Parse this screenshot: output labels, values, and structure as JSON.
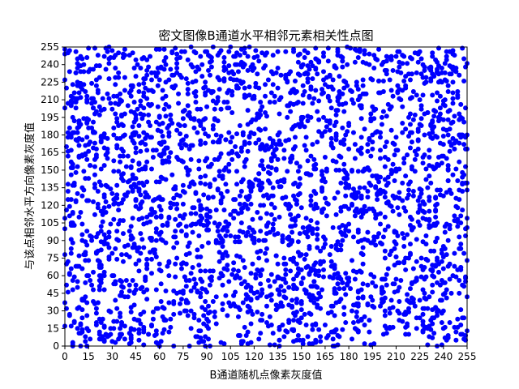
{
  "chart_data": {
    "type": "scatter",
    "title": "密文图像B通道水平相邻元素相关性点图",
    "xlabel": "B通道随机点像素灰度值",
    "ylabel": "与该点相邻水平方向像素灰度值",
    "xlim": [
      0,
      255
    ],
    "ylim": [
      0,
      255
    ],
    "xticks": [
      0,
      15,
      30,
      45,
      60,
      75,
      90,
      105,
      120,
      135,
      150,
      165,
      180,
      195,
      210,
      225,
      240,
      255
    ],
    "yticks": [
      0,
      15,
      30,
      45,
      60,
      75,
      90,
      105,
      120,
      135,
      150,
      165,
      180,
      195,
      210,
      225,
      240,
      255
    ],
    "grid": false,
    "marker_color": "#0000ff",
    "marker_shape": "filled-circle",
    "series": [
      {
        "point_count": 3000,
        "distribution": "uniform random over [0,255] x [0,255]",
        "sample_points": [
          [
            3,
            252
          ],
          [
            12,
            240
          ],
          [
            20,
            227
          ],
          [
            35,
            210
          ],
          [
            48,
            198
          ],
          [
            61,
            183
          ],
          [
            77,
            171
          ],
          [
            90,
            160
          ],
          [
            104,
            149
          ],
          [
            118,
            133
          ],
          [
            131,
            121
          ],
          [
            146,
            107
          ],
          [
            160,
            95
          ],
          [
            173,
            82
          ],
          [
            189,
            70
          ],
          [
            203,
            57
          ],
          [
            217,
            44
          ],
          [
            230,
            32
          ],
          [
            244,
            20
          ],
          [
            253,
            6
          ],
          [
            8,
            130
          ],
          [
            66,
            12
          ],
          [
            128,
            250
          ],
          [
            199,
            140
          ]
        ]
      }
    ]
  }
}
